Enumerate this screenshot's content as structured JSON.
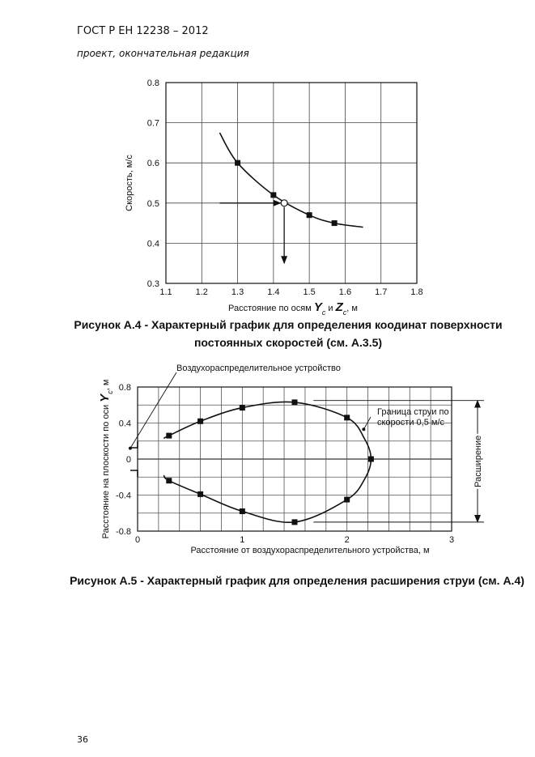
{
  "header": {
    "title": "ГОСТ Р ЕН 12238 – 2012",
    "subtitle": "проект, окончательная редакция"
  },
  "chart_data": [
    {
      "type": "line",
      "title": [
        "Рисунок А.4 - Характерный график для определения коодинат поверхности",
        "постоянных скоростей (см. А.3.5)"
      ],
      "xlabel": [
        "Расстояние по осям ",
        "Y",
        "c",
        " и ",
        "Z",
        "c",
        ", м"
      ],
      "ylabel": [
        "Скорость, м/с"
      ],
      "xlim": [
        1.1,
        1.8
      ],
      "xticks": [
        1.1,
        1.2,
        1.3,
        1.4,
        1.5,
        1.6,
        1.7,
        1.8
      ],
      "ylim": [
        0.3,
        0.8
      ],
      "yticks": [
        0.3,
        0.4,
        0.5,
        0.6,
        0.7,
        0.8
      ],
      "grid": true,
      "series": [
        {
          "color": "#111111",
          "marker": "line",
          "x": [
            1.25,
            1.3,
            1.4,
            1.5,
            1.57,
            1.65
          ],
          "values": [
            0.675,
            0.6,
            0.52,
            0.47,
            0.45,
            0.44
          ]
        },
        {
          "color": "#111111",
          "marker": "square",
          "x": [
            1.3,
            1.4,
            1.5,
            1.57
          ],
          "values": [
            0.6,
            0.52,
            0.47,
            0.45
          ]
        },
        {
          "color": "#111111",
          "marker": "open-circle",
          "x": [
            1.43
          ],
          "values": [
            0.5
          ]
        }
      ],
      "arrows": [
        {
          "x": [
            1.25,
            1.42
          ],
          "values": [
            0.5,
            0.5
          ]
        },
        {
          "x": [
            1.43,
            1.43
          ],
          "values": [
            0.49,
            0.35
          ]
        }
      ]
    },
    {
      "type": "line",
      "title": [
        "Рисунок А.5 - Характерный график для определения расширения струи (см. А.4)"
      ],
      "xlabel": [
        "Расстояние от воздухораспределительного устройства, м"
      ],
      "ylabel": [
        "Расстояние на плоскости по оси ",
        "Y",
        "c",
        ", м"
      ],
      "xlim": [
        0,
        3
      ],
      "xticks": [
        0,
        1,
        2,
        3
      ],
      "xgrid": [
        0,
        0.2,
        0.4,
        0.6,
        0.8,
        1,
        1.2,
        1.4,
        1.6,
        1.8,
        2,
        2.2,
        2.4,
        2.6,
        2.8,
        3
      ],
      "ylim": [
        -0.8,
        0.8
      ],
      "yticks": [
        -0.8,
        -0.4,
        0,
        0.4,
        0.8
      ],
      "ygrid": [
        -0.8,
        -0.6,
        -0.4,
        -0.2,
        0,
        0.2,
        0.4,
        0.6,
        0.8
      ],
      "grid": true,
      "series": [
        {
          "color": "#111111",
          "marker": "line",
          "x": [
            0.25,
            0.3,
            0.6,
            1.0,
            1.5,
            2.0,
            2.17,
            2.23,
            2.17,
            2.0,
            1.5,
            1.0,
            0.6,
            0.3,
            0.25
          ],
          "values": [
            0.23,
            0.26,
            0.42,
            0.57,
            0.63,
            0.46,
            0.22,
            0,
            -0.22,
            -0.45,
            -0.7,
            -0.58,
            -0.39,
            -0.24,
            -0.18
          ]
        },
        {
          "color": "#111111",
          "marker": "square",
          "x": [
            0.3,
            0.6,
            1.0,
            1.5,
            2.0,
            2.23,
            2.0,
            1.5,
            1.0,
            0.6,
            0.3
          ],
          "values": [
            0.26,
            0.42,
            0.57,
            0.63,
            0.46,
            0,
            -0.45,
            -0.7,
            -0.58,
            -0.39,
            -0.24
          ]
        }
      ],
      "annotations": [
        {
          "text": [
            "Воздухораспределительное устройство"
          ],
          "x": -0.07,
          "y": 0.12
        },
        {
          "text": [
            "Граница струи по",
            "скорости 0,5 м/с"
          ],
          "x": 2.16,
          "y": 0.33
        }
      ],
      "expansion": {
        "label": "Расширение",
        "from": 0.65,
        "to": -0.7
      }
    }
  ],
  "page_number": "36"
}
